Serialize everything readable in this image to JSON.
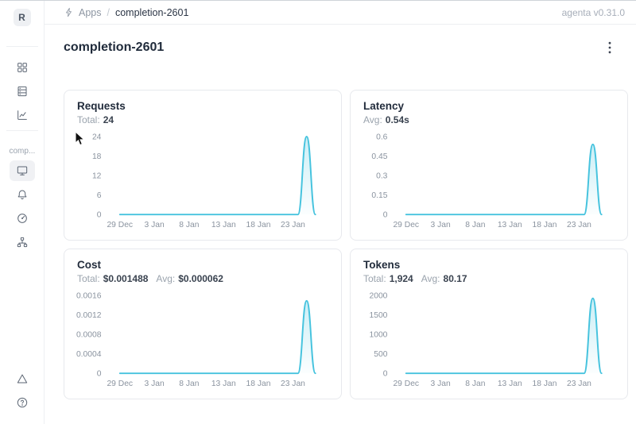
{
  "header": {
    "breadcrumb_root": "Apps",
    "breadcrumb_separator": "/",
    "breadcrumb_current": "completion-2601",
    "version_label": "agenta v0.31.0"
  },
  "sidebar": {
    "workspace_initial": "R",
    "section_label": "comp...",
    "nav_icons_top": [
      "appstore-icon",
      "database-icon",
      "line-chart-icon"
    ],
    "nav_icons_app": [
      "monitor-icon",
      "bell-icon",
      "gauge-icon",
      "tree-icon"
    ],
    "nav_icons_bottom": [
      "triangle-icon",
      "question-circle-icon"
    ],
    "selected_item": "overview"
  },
  "page": {
    "title": "completion-2601"
  },
  "chart_data": [
    {
      "key": "requests",
      "type": "area",
      "title": "Requests",
      "stats": [
        {
          "label": "Total:",
          "value": "24"
        }
      ],
      "color": "#46c3de",
      "ymax": 24,
      "ylim": [
        0,
        24
      ],
      "ytick_labels": [
        "0",
        "6",
        "12",
        "18",
        "24"
      ],
      "xticks": [
        {
          "label": "29 Dec",
          "x": 0.06
        },
        {
          "label": "3 Jan",
          "x": 0.218
        },
        {
          "label": "8 Jan",
          "x": 0.377
        },
        {
          "label": "13 Jan",
          "x": 0.535
        },
        {
          "label": "18 Jan",
          "x": 0.694
        },
        {
          "label": "23 Jan",
          "x": 0.852
        }
      ],
      "points": [
        {
          "x": 0.06,
          "y": 0
        },
        {
          "x": 0.875,
          "y": 0
        },
        {
          "x": 0.915,
          "y": 24
        },
        {
          "x": 0.955,
          "y": 0
        }
      ],
      "grid": false,
      "legend": false
    },
    {
      "key": "latency",
      "type": "area",
      "title": "Latency",
      "stats": [
        {
          "label": "Avg:",
          "value": "0.54s"
        }
      ],
      "color": "#46c3de",
      "ymax": 0.6,
      "ylim": [
        0,
        0.6
      ],
      "ytick_labels": [
        "0",
        "0.15",
        "0.3",
        "0.45",
        "0.6"
      ],
      "xticks": [
        {
          "label": "29 Dec",
          "x": 0.06
        },
        {
          "label": "3 Jan",
          "x": 0.218
        },
        {
          "label": "8 Jan",
          "x": 0.377
        },
        {
          "label": "13 Jan",
          "x": 0.535
        },
        {
          "label": "18 Jan",
          "x": 0.694
        },
        {
          "label": "23 Jan",
          "x": 0.852
        }
      ],
      "points": [
        {
          "x": 0.06,
          "y": 0
        },
        {
          "x": 0.875,
          "y": 0
        },
        {
          "x": 0.915,
          "y": 0.54
        },
        {
          "x": 0.955,
          "y": 0
        }
      ],
      "grid": false,
      "legend": false
    },
    {
      "key": "cost",
      "type": "area",
      "title": "Cost",
      "stats": [
        {
          "label": "Total:",
          "value": "$0.001488"
        },
        {
          "label": "Avg:",
          "value": "$0.000062"
        }
      ],
      "color": "#46c3de",
      "ymax": 0.0016,
      "ylim": [
        0,
        0.0016
      ],
      "ytick_labels": [
        "0",
        "0.0004",
        "0.0008",
        "0.0012",
        "0.0016"
      ],
      "xticks": [
        {
          "label": "29 Dec",
          "x": 0.06
        },
        {
          "label": "3 Jan",
          "x": 0.218
        },
        {
          "label": "8 Jan",
          "x": 0.377
        },
        {
          "label": "13 Jan",
          "x": 0.535
        },
        {
          "label": "18 Jan",
          "x": 0.694
        },
        {
          "label": "23 Jan",
          "x": 0.852
        }
      ],
      "points": [
        {
          "x": 0.06,
          "y": 0
        },
        {
          "x": 0.875,
          "y": 0
        },
        {
          "x": 0.915,
          "y": 0.001488
        },
        {
          "x": 0.955,
          "y": 0
        }
      ],
      "grid": false,
      "legend": false
    },
    {
      "key": "tokens",
      "type": "area",
      "title": "Tokens",
      "stats": [
        {
          "label": "Total:",
          "value": "1,924"
        },
        {
          "label": "Avg:",
          "value": "80.17"
        }
      ],
      "color": "#46c3de",
      "ymax": 2000,
      "ylim": [
        0,
        2000
      ],
      "ytick_labels": [
        "0",
        "500",
        "1000",
        "1500",
        "2000"
      ],
      "xticks": [
        {
          "label": "29 Dec",
          "x": 0.06
        },
        {
          "label": "3 Jan",
          "x": 0.218
        },
        {
          "label": "8 Jan",
          "x": 0.377
        },
        {
          "label": "13 Jan",
          "x": 0.535
        },
        {
          "label": "18 Jan",
          "x": 0.694
        },
        {
          "label": "23 Jan",
          "x": 0.852
        }
      ],
      "points": [
        {
          "x": 0.06,
          "y": 0
        },
        {
          "x": 0.875,
          "y": 0
        },
        {
          "x": 0.915,
          "y": 1924
        },
        {
          "x": 0.955,
          "y": 0
        }
      ],
      "grid": false,
      "legend": false
    }
  ]
}
